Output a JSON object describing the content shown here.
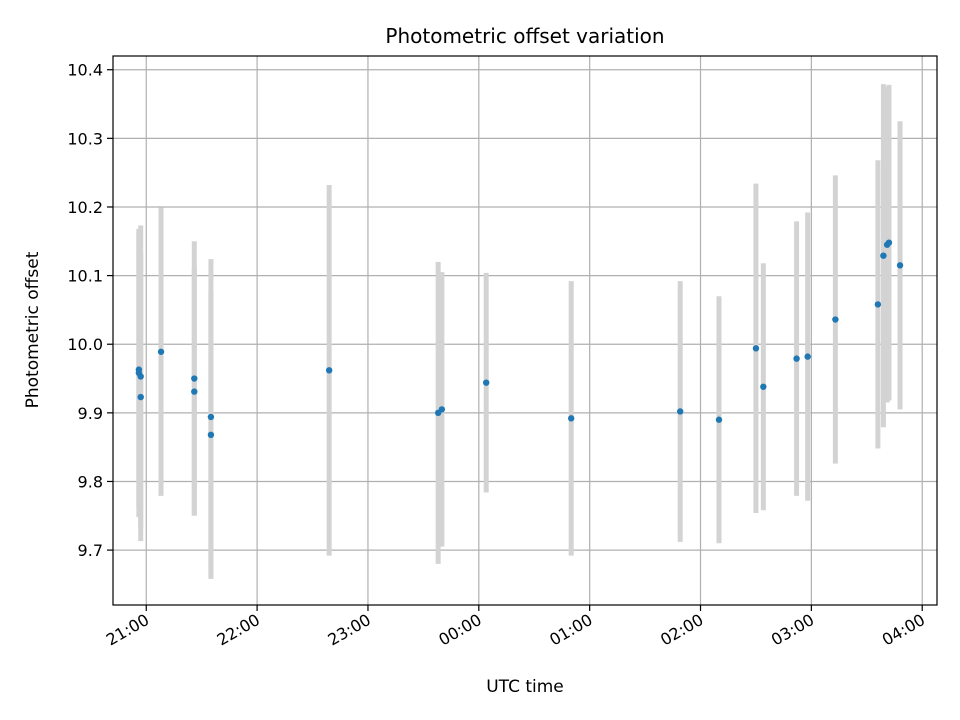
{
  "chart_data": {
    "type": "scatter",
    "title": "Photometric offset variation",
    "xlabel": "UTC time",
    "ylabel": "Photometric offset",
    "grid": true,
    "xlim": [
      "20:42",
      "04:08"
    ],
    "ylim": [
      9.62,
      10.42
    ],
    "x_ticks": [
      "21:00",
      "22:00",
      "23:00",
      "00:00",
      "01:00",
      "02:00",
      "03:00",
      "04:00"
    ],
    "y_ticks": [
      "9.7",
      "9.8",
      "9.9",
      "10.0",
      "10.1",
      "10.2",
      "10.3",
      "10.4"
    ],
    "colors": {
      "points": "#1f77b4",
      "errorbars": "#d3d3d3",
      "grid": "#b0b0b0"
    },
    "points": [
      {
        "x": "20:56",
        "y": 9.963,
        "err": 0.2
      },
      {
        "x": "20:56",
        "y": 9.958,
        "err": 0.21
      },
      {
        "x": "20:57",
        "y": 9.953,
        "err": 0.22
      },
      {
        "x": "20:57",
        "y": 9.923,
        "err": 0.21
      },
      {
        "x": "21:08",
        "y": 9.989,
        "err": 0.21
      },
      {
        "x": "21:26",
        "y": 9.95,
        "err": 0.2
      },
      {
        "x": "21:26",
        "y": 9.931,
        "err": 0.18
      },
      {
        "x": "21:35",
        "y": 9.894,
        "err": 0.23
      },
      {
        "x": "21:35",
        "y": 9.868,
        "err": 0.21
      },
      {
        "x": "22:39",
        "y": 9.962,
        "err": 0.27
      },
      {
        "x": "23:38",
        "y": 9.9,
        "err": 0.22
      },
      {
        "x": "23:40",
        "y": 9.905,
        "err": 0.2
      },
      {
        "x": "00:04",
        "y": 9.944,
        "err": 0.16
      },
      {
        "x": "00:50",
        "y": 9.892,
        "err": 0.2
      },
      {
        "x": "01:49",
        "y": 9.902,
        "err": 0.19
      },
      {
        "x": "02:10",
        "y": 9.89,
        "err": 0.18
      },
      {
        "x": "02:30",
        "y": 9.994,
        "err": 0.24
      },
      {
        "x": "02:34",
        "y": 9.938,
        "err": 0.18
      },
      {
        "x": "02:52",
        "y": 9.979,
        "err": 0.2
      },
      {
        "x": "02:58",
        "y": 9.982,
        "err": 0.21
      },
      {
        "x": "03:13",
        "y": 10.036,
        "err": 0.21
      },
      {
        "x": "03:36",
        "y": 10.058,
        "err": 0.21
      },
      {
        "x": "03:39",
        "y": 10.129,
        "err": 0.25
      },
      {
        "x": "03:41",
        "y": 10.145,
        "err": 0.23
      },
      {
        "x": "03:42",
        "y": 10.148,
        "err": 0.23
      },
      {
        "x": "03:48",
        "y": 10.115,
        "err": 0.21
      }
    ]
  }
}
